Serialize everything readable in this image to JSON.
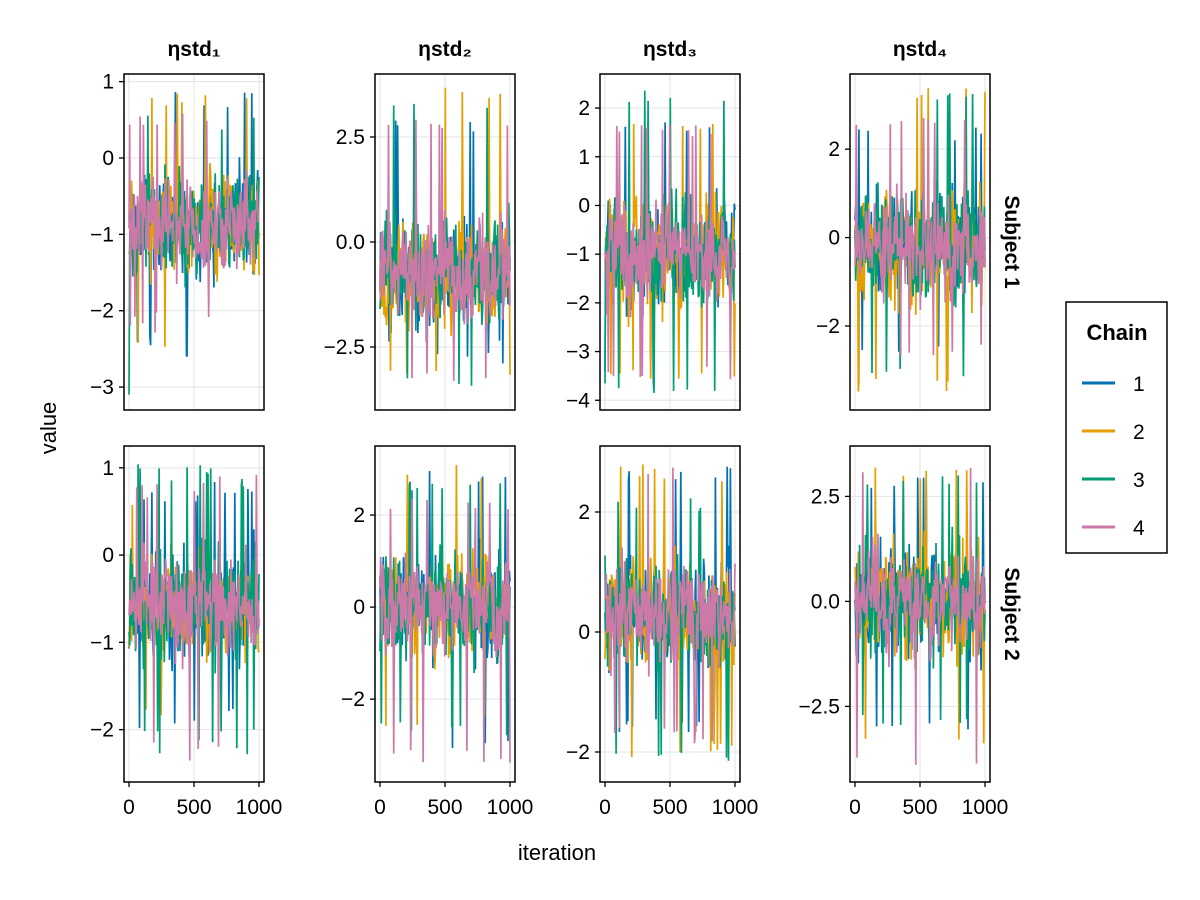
{
  "chart_data": {
    "type": "line",
    "xlabel": "iteration",
    "ylabel": "value",
    "x_range": [
      0,
      1000
    ],
    "x_ticks": [
      "0",
      "500",
      "1000"
    ],
    "grid": true,
    "columns": [
      "ηstd₁",
      "ηstd₂",
      "ηstd₃",
      "ηstd₄"
    ],
    "rows": [
      "Subject 1",
      "Subject 2"
    ],
    "legend": {
      "title": "Chain",
      "placement": "right",
      "entries": [
        {
          "label": "1",
          "color": "#0072b2"
        },
        {
          "label": "2",
          "color": "#e69f00"
        },
        {
          "label": "3",
          "color": "#009e73"
        },
        {
          "label": "4",
          "color": "#cc79a7"
        }
      ]
    },
    "panels": [
      {
        "row": 0,
        "col": 0,
        "ylim": [
          -3.3,
          1.1
        ],
        "yticks": [
          {
            "v": 1,
            "label": "1"
          },
          {
            "v": 0,
            "label": "0"
          },
          {
            "v": -1,
            "label": "−1"
          },
          {
            "v": -2,
            "label": "−2"
          },
          {
            "v": -3,
            "label": "−3"
          }
        ],
        "series": [
          {
            "chain": "1",
            "center": -0.85,
            "spread": 1.0,
            "min": -2.6,
            "max": 0.9,
            "seed": 11
          },
          {
            "chain": "2",
            "center": -0.85,
            "spread": 1.0,
            "min": -2.6,
            "max": 0.9,
            "seed": 12
          },
          {
            "chain": "3",
            "center": -0.85,
            "spread": 1.0,
            "min": -3.1,
            "max": 0.6,
            "seed": 13
          },
          {
            "chain": "4",
            "center": -0.85,
            "spread": 0.9,
            "min": -2.3,
            "max": 0.7,
            "seed": 14
          }
        ]
      },
      {
        "row": 0,
        "col": 1,
        "ylim": [
          -4.0,
          4.0
        ],
        "yticks": [
          {
            "v": 2.5,
            "label": "2.5"
          },
          {
            "v": 0,
            "label": "0.0"
          },
          {
            "v": -2.5,
            "label": "−2.5"
          }
        ],
        "series": [
          {
            "chain": "1",
            "center": -0.7,
            "spread": 1.9,
            "min": -2.9,
            "max": 2.9,
            "seed": 21
          },
          {
            "chain": "2",
            "center": -0.7,
            "spread": 1.9,
            "min": -3.3,
            "max": 3.7,
            "seed": 22
          },
          {
            "chain": "3",
            "center": -0.7,
            "spread": 1.9,
            "min": -3.5,
            "max": 3.4,
            "seed": 23
          },
          {
            "chain": "4",
            "center": -0.7,
            "spread": 1.7,
            "min": -3.4,
            "max": 3.0,
            "seed": 24
          }
        ]
      },
      {
        "row": 0,
        "col": 2,
        "ylim": [
          -4.2,
          2.7
        ],
        "yticks": [
          {
            "v": 2,
            "label": "2"
          },
          {
            "v": 1,
            "label": "1"
          },
          {
            "v": 0,
            "label": "0"
          },
          {
            "v": -1,
            "label": "−1"
          },
          {
            "v": -2,
            "label": "−2"
          },
          {
            "v": -3,
            "label": "−3"
          },
          {
            "v": -4,
            "label": "−4"
          }
        ],
        "series": [
          {
            "chain": "1",
            "center": -1.0,
            "spread": 1.6,
            "min": -3.5,
            "max": 1.8,
            "seed": 31
          },
          {
            "chain": "2",
            "center": -1.0,
            "spread": 1.6,
            "min": -3.6,
            "max": 1.8,
            "seed": 32
          },
          {
            "chain": "3",
            "center": -1.0,
            "spread": 1.6,
            "min": -3.9,
            "max": 2.4,
            "seed": 33
          },
          {
            "chain": "4",
            "center": -1.0,
            "spread": 1.4,
            "min": -3.6,
            "max": 1.7,
            "seed": 34
          }
        ]
      },
      {
        "row": 0,
        "col": 3,
        "ylim": [
          -3.9,
          3.7
        ],
        "yticks": [
          {
            "v": 2,
            "label": "2"
          },
          {
            "v": 0,
            "label": "0"
          },
          {
            "v": -2,
            "label": "−2"
          }
        ],
        "series": [
          {
            "chain": "1",
            "center": -0.2,
            "spread": 1.8,
            "min": -2.6,
            "max": 2.5,
            "seed": 41
          },
          {
            "chain": "2",
            "center": -0.2,
            "spread": 1.8,
            "min": -3.5,
            "max": 3.4,
            "seed": 42
          },
          {
            "chain": "3",
            "center": -0.2,
            "spread": 1.8,
            "min": -3.2,
            "max": 3.3,
            "seed": 43
          },
          {
            "chain": "4",
            "center": -0.2,
            "spread": 1.6,
            "min": -2.7,
            "max": 2.8,
            "seed": 44
          }
        ]
      },
      {
        "row": 1,
        "col": 0,
        "ylim": [
          -2.6,
          1.25
        ],
        "yticks": [
          {
            "v": 1,
            "label": "1"
          },
          {
            "v": 0,
            "label": "0"
          },
          {
            "v": -1,
            "label": "−1"
          },
          {
            "v": -2,
            "label": "−2"
          }
        ],
        "series": [
          {
            "chain": "1",
            "center": -0.55,
            "spread": 0.9,
            "min": -2.0,
            "max": 0.9,
            "seed": 51
          },
          {
            "chain": "2",
            "center": -0.55,
            "spread": 0.9,
            "min": -2.0,
            "max": 0.8,
            "seed": 52
          },
          {
            "chain": "3",
            "center": -0.55,
            "spread": 0.9,
            "min": -2.3,
            "max": 1.05,
            "seed": 53
          },
          {
            "chain": "4",
            "center": -0.55,
            "spread": 0.8,
            "min": -2.4,
            "max": 0.95,
            "seed": 54
          }
        ]
      },
      {
        "row": 1,
        "col": 1,
        "ylim": [
          -3.8,
          3.5
        ],
        "yticks": [
          {
            "v": 2,
            "label": "2"
          },
          {
            "v": 0,
            "label": "0"
          },
          {
            "v": -2,
            "label": "−2"
          }
        ],
        "series": [
          {
            "chain": "1",
            "center": 0.0,
            "spread": 1.6,
            "min": -3.1,
            "max": 3.0,
            "seed": 61
          },
          {
            "chain": "2",
            "center": 0.0,
            "spread": 1.6,
            "min": -2.6,
            "max": 3.1,
            "seed": 62
          },
          {
            "chain": "3",
            "center": 0.0,
            "spread": 1.6,
            "min": -2.8,
            "max": 2.8,
            "seed": 63
          },
          {
            "chain": "4",
            "center": 0.0,
            "spread": 1.4,
            "min": -3.4,
            "max": 2.4,
            "seed": 64
          }
        ]
      },
      {
        "row": 1,
        "col": 2,
        "ylim": [
          -2.5,
          3.1
        ],
        "yticks": [
          {
            "v": 2,
            "label": "2"
          },
          {
            "v": 0,
            "label": "0"
          },
          {
            "v": -2,
            "label": "−2"
          }
        ],
        "series": [
          {
            "chain": "1",
            "center": 0.3,
            "spread": 1.3,
            "min": -1.7,
            "max": 2.8,
            "seed": 71
          },
          {
            "chain": "2",
            "center": 0.3,
            "spread": 1.3,
            "min": -2.1,
            "max": 2.8,
            "seed": 72
          },
          {
            "chain": "3",
            "center": 0.3,
            "spread": 1.3,
            "min": -2.2,
            "max": 2.3,
            "seed": 73
          },
          {
            "chain": "4",
            "center": 0.3,
            "spread": 1.2,
            "min": -1.9,
            "max": 2.8,
            "seed": 74
          }
        ]
      },
      {
        "row": 1,
        "col": 3,
        "ylim": [
          -4.3,
          3.7
        ],
        "yticks": [
          {
            "v": 2.5,
            "label": "2.5"
          },
          {
            "v": 0,
            "label": "0.0"
          },
          {
            "v": -2.5,
            "label": "−2.5"
          }
        ],
        "series": [
          {
            "chain": "1",
            "center": 0.0,
            "spread": 2.0,
            "min": -3.2,
            "max": 3.0,
            "seed": 81
          },
          {
            "chain": "2",
            "center": 0.0,
            "spread": 2.0,
            "min": -3.5,
            "max": 3.2,
            "seed": 82
          },
          {
            "chain": "3",
            "center": 0.0,
            "spread": 2.0,
            "min": -3.0,
            "max": 3.0,
            "seed": 83
          },
          {
            "chain": "4",
            "center": 0.0,
            "spread": 1.8,
            "min": -3.9,
            "max": 3.3,
            "seed": 84
          }
        ]
      }
    ]
  }
}
